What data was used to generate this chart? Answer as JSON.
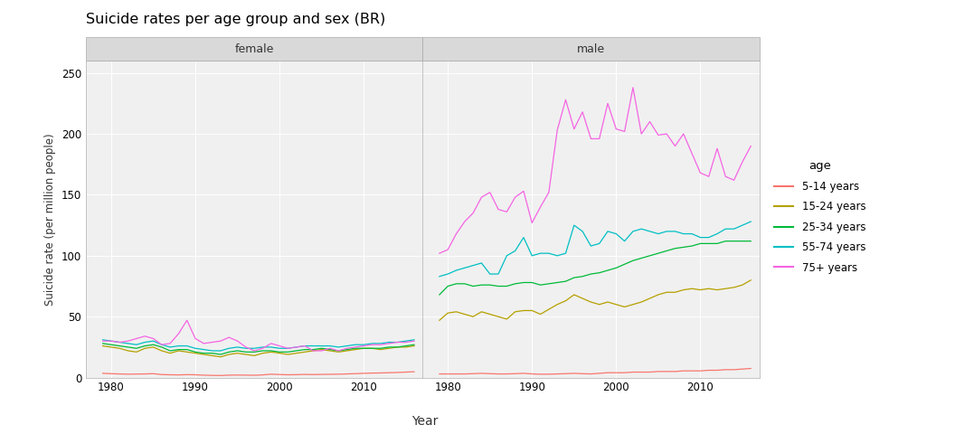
{
  "title": "Suicide rates per age group and sex (BR)",
  "ylabel": "Suicide rate (per million people)",
  "xlabel": "Year",
  "ylim": [
    0,
    260
  ],
  "yticks": [
    0,
    50,
    100,
    150,
    200,
    250
  ],
  "panel_labels": [
    "female",
    "male"
  ],
  "age_groups": [
    "5-14 years",
    "15-24 years",
    "25-34 years",
    "55-74 years",
    "75+ years"
  ],
  "colors": {
    "5-14 years": "#F8766D",
    "15-24 years": "#B5A000",
    "25-34 years": "#00BA38",
    "55-74 years": "#00BFC4",
    "75+ years": "#F564E3"
  },
  "years": [
    1979,
    1980,
    1981,
    1982,
    1983,
    1984,
    1985,
    1986,
    1987,
    1988,
    1989,
    1990,
    1991,
    1992,
    1993,
    1994,
    1995,
    1996,
    1997,
    1998,
    1999,
    2000,
    2001,
    2002,
    2003,
    2004,
    2005,
    2006,
    2007,
    2008,
    2009,
    2010,
    2011,
    2012,
    2013,
    2014,
    2015,
    2016
  ],
  "female": {
    "5-14 years": [
      3.5,
      3.2,
      3.0,
      2.8,
      2.9,
      3.0,
      3.2,
      2.5,
      2.3,
      2.2,
      2.4,
      2.3,
      2.0,
      1.8,
      1.7,
      2.0,
      2.1,
      2.0,
      1.9,
      2.2,
      2.8,
      2.5,
      2.3,
      2.4,
      2.6,
      2.5,
      2.6,
      2.7,
      2.8,
      3.0,
      3.2,
      3.5,
      3.7,
      3.8,
      4.0,
      4.2,
      4.5,
      4.8
    ],
    "15-24 years": [
      26,
      25,
      24,
      22,
      21,
      24,
      25,
      22,
      20,
      22,
      21,
      20,
      19,
      18,
      17,
      19,
      20,
      19,
      18,
      20,
      21,
      20,
      19,
      20,
      21,
      22,
      23,
      22,
      21,
      22,
      23,
      24,
      24,
      23,
      24,
      25,
      25,
      26
    ],
    "25-34 years": [
      28,
      27,
      26,
      25,
      24,
      26,
      27,
      25,
      22,
      23,
      23,
      21,
      20,
      20,
      19,
      21,
      22,
      21,
      21,
      22,
      22,
      21,
      21,
      22,
      23,
      23,
      24,
      23,
      22,
      23,
      24,
      24,
      24,
      24,
      25,
      25,
      26,
      27
    ],
    "55-74 years": [
      31,
      30,
      29,
      28,
      27,
      29,
      30,
      27,
      25,
      26,
      26,
      24,
      23,
      22,
      22,
      24,
      25,
      24,
      24,
      25,
      25,
      24,
      24,
      25,
      26,
      26,
      26,
      26,
      25,
      26,
      27,
      27,
      28,
      28,
      29,
      29,
      30,
      31
    ],
    "75+ years": [
      30,
      30,
      29,
      30,
      32,
      34,
      32,
      27,
      28,
      36,
      47,
      32,
      28,
      29,
      30,
      33,
      30,
      25,
      22,
      24,
      28,
      26,
      24,
      25,
      26,
      22,
      22,
      24,
      22,
      24,
      25,
      26,
      27,
      27,
      28,
      29,
      29,
      30
    ]
  },
  "male": {
    "5-14 years": [
      3.0,
      3.0,
      3.0,
      3.0,
      3.2,
      3.5,
      3.2,
      3.0,
      3.0,
      3.2,
      3.5,
      3.0,
      2.8,
      2.8,
      3.0,
      3.2,
      3.5,
      3.2,
      3.0,
      3.5,
      4.0,
      4.0,
      4.0,
      4.5,
      4.5,
      4.5,
      5.0,
      5.0,
      5.0,
      5.5,
      5.5,
      5.5,
      6.0,
      6.0,
      6.5,
      6.5,
      7.0,
      7.5
    ],
    "15-24 years": [
      47,
      53,
      54,
      52,
      50,
      54,
      52,
      50,
      48,
      54,
      55,
      55,
      52,
      56,
      60,
      63,
      68,
      65,
      62,
      60,
      62,
      60,
      58,
      60,
      62,
      65,
      68,
      70,
      70,
      72,
      73,
      72,
      73,
      72,
      73,
      74,
      76,
      80
    ],
    "25-34 years": [
      68,
      75,
      77,
      77,
      75,
      76,
      76,
      75,
      75,
      77,
      78,
      78,
      76,
      77,
      78,
      79,
      82,
      83,
      85,
      86,
      88,
      90,
      93,
      96,
      98,
      100,
      102,
      104,
      106,
      107,
      108,
      110,
      110,
      110,
      112,
      112,
      112,
      112
    ],
    "55-74 years": [
      83,
      85,
      88,
      90,
      92,
      94,
      85,
      85,
      100,
      104,
      115,
      100,
      102,
      102,
      100,
      102,
      125,
      120,
      108,
      110,
      120,
      118,
      112,
      120,
      122,
      120,
      118,
      120,
      120,
      118,
      118,
      115,
      115,
      118,
      122,
      122,
      125,
      128
    ],
    "75+ years": [
      102,
      105,
      118,
      128,
      135,
      148,
      152,
      138,
      136,
      148,
      153,
      127,
      140,
      152,
      203,
      228,
      204,
      218,
      196,
      196,
      225,
      204,
      202,
      238,
      200,
      210,
      199,
      200,
      190,
      200,
      184,
      168,
      165,
      188,
      165,
      162,
      177,
      190
    ]
  }
}
